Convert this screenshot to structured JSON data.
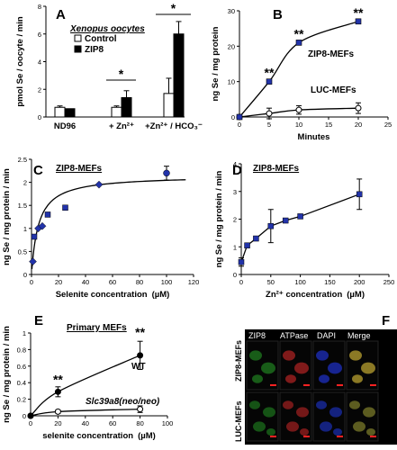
{
  "panels": {
    "A": {
      "label": "A",
      "title": "Xenopus oocytes",
      "legend": [
        "Control",
        "ZIP8"
      ],
      "star1": "*",
      "star2": "*"
    },
    "B": {
      "label": "B",
      "label_zip8": "ZIP8-MEFs",
      "label_luc": "LUC-MEFs",
      "stars": [
        "**",
        "**",
        "**"
      ]
    },
    "C": {
      "label": "C",
      "title": "ZIP8-MEFs"
    },
    "D": {
      "label": "D",
      "title": "ZIP8-MEFs"
    },
    "E": {
      "label": "E",
      "title": "Primary MEFs",
      "label_wt": "WT",
      "label_ko": "Slc39a8(neo/neo)",
      "stars": [
        "**",
        "**"
      ]
    },
    "F": {
      "label": "F",
      "col_headers": [
        "ZIP8",
        "ATPase",
        "DAPI",
        "Merge"
      ],
      "row_labels": [
        "ZIP8-MEFs",
        "LUC-MEFs"
      ]
    }
  },
  "chart_data": [
    {
      "id": "A",
      "type": "bar",
      "title": "Xenopus oocytes",
      "ylabel": "pmol Se / oocyte / min",
      "categories": [
        "ND96",
        "+ Zn²⁺",
        "+Zn²⁺ / HCO₃⁻"
      ],
      "series": [
        {
          "name": "Control",
          "values": [
            0.7,
            0.7,
            1.7
          ],
          "errors": [
            0.1,
            0.1,
            1.1
          ]
        },
        {
          "name": "ZIP8",
          "values": [
            0.6,
            1.4,
            6.0
          ],
          "errors": [
            0.05,
            0.5,
            0.9
          ]
        }
      ],
      "ylim": [
        0,
        8
      ],
      "yticks": [
        "0",
        "2",
        "4",
        "6",
        "8"
      ]
    },
    {
      "id": "B",
      "type": "line",
      "xlabel": "Minutes",
      "ylabel": "ng Se / mg protein",
      "xlim": [
        0,
        25
      ],
      "ylim": [
        0,
        30
      ],
      "xticks": [
        "0",
        "5",
        "10",
        "15",
        "20",
        "25"
      ],
      "yticks": [
        "0",
        "10",
        "20",
        "30"
      ],
      "series": [
        {
          "name": "ZIP8-MEFs",
          "x": [
            0,
            5,
            10,
            20
          ],
          "y": [
            0,
            10,
            21,
            27
          ],
          "errors": [
            0,
            0.6,
            0.6,
            0.8
          ]
        },
        {
          "name": "LUC-MEFs",
          "x": [
            0,
            5,
            10,
            20
          ],
          "y": [
            0,
            1,
            2,
            2.5
          ],
          "errors": [
            0,
            1.5,
            1.2,
            1.5
          ]
        }
      ]
    },
    {
      "id": "C",
      "type": "scatter",
      "title": "ZIP8-MEFs",
      "xlabel": "Selenite concentration",
      "xunit": "(µM)",
      "ylabel": "ng Se / mg protein / min",
      "xlim": [
        0,
        120
      ],
      "ylim": [
        0,
        2.5
      ],
      "xticks": [
        "0",
        "20",
        "40",
        "60",
        "80",
        "100",
        "120"
      ],
      "yticks": [
        "0",
        "0.5",
        "1",
        "1.5",
        "2",
        "2.5"
      ],
      "x": [
        1,
        2,
        5,
        8,
        12,
        25,
        50,
        100
      ],
      "y": [
        0.28,
        0.82,
        1.0,
        1.05,
        1.3,
        1.45,
        1.95,
        2.2
      ],
      "errors": [
        0.05,
        0.05,
        0.05,
        0.05,
        0.05,
        0.05,
        0.05,
        0.15
      ]
    },
    {
      "id": "D",
      "type": "line",
      "title": "ZIP8-MEFs",
      "xlabel": "Zn²⁺ concentration",
      "xunit": "(µM)",
      "ylabel": "ng Se / mg protein / min",
      "xlim": [
        0,
        250
      ],
      "ylim": [
        0,
        4
      ],
      "xticks": [
        "0",
        "50",
        "100",
        "150",
        "200",
        "250"
      ],
      "yticks": [
        "0",
        "1",
        "2",
        "3",
        "4"
      ],
      "x": [
        0,
        10,
        25,
        50,
        75,
        100,
        200
      ],
      "y": [
        0.45,
        1.05,
        1.3,
        1.75,
        1.95,
        2.1,
        2.9
      ],
      "errors": [
        0.15,
        0.05,
        0.05,
        0.6,
        0.05,
        0.05,
        0.55
      ]
    },
    {
      "id": "E",
      "type": "line",
      "title": "Primary MEFs",
      "xlabel": "selenite concentration",
      "xunit": "(µM)",
      "ylabel": "ng Se / mg protein / min",
      "xlim": [
        0,
        100
      ],
      "ylim": [
        0,
        1
      ],
      "xticks": [
        "0",
        "20",
        "40",
        "60",
        "80",
        "100"
      ],
      "yticks": [
        "0",
        "0.2",
        "0.4",
        "0.6",
        "0.8",
        "1"
      ],
      "series": [
        {
          "name": "WT",
          "x": [
            0,
            20,
            80
          ],
          "y": [
            0,
            0.29,
            0.73
          ],
          "errors": [
            0,
            0.06,
            0.17
          ]
        },
        {
          "name": "Slc39a8(neo/neo)",
          "x": [
            0,
            20,
            80
          ],
          "y": [
            0,
            0.05,
            0.08
          ],
          "errors": [
            0,
            0.02,
            0.04
          ]
        }
      ]
    }
  ]
}
